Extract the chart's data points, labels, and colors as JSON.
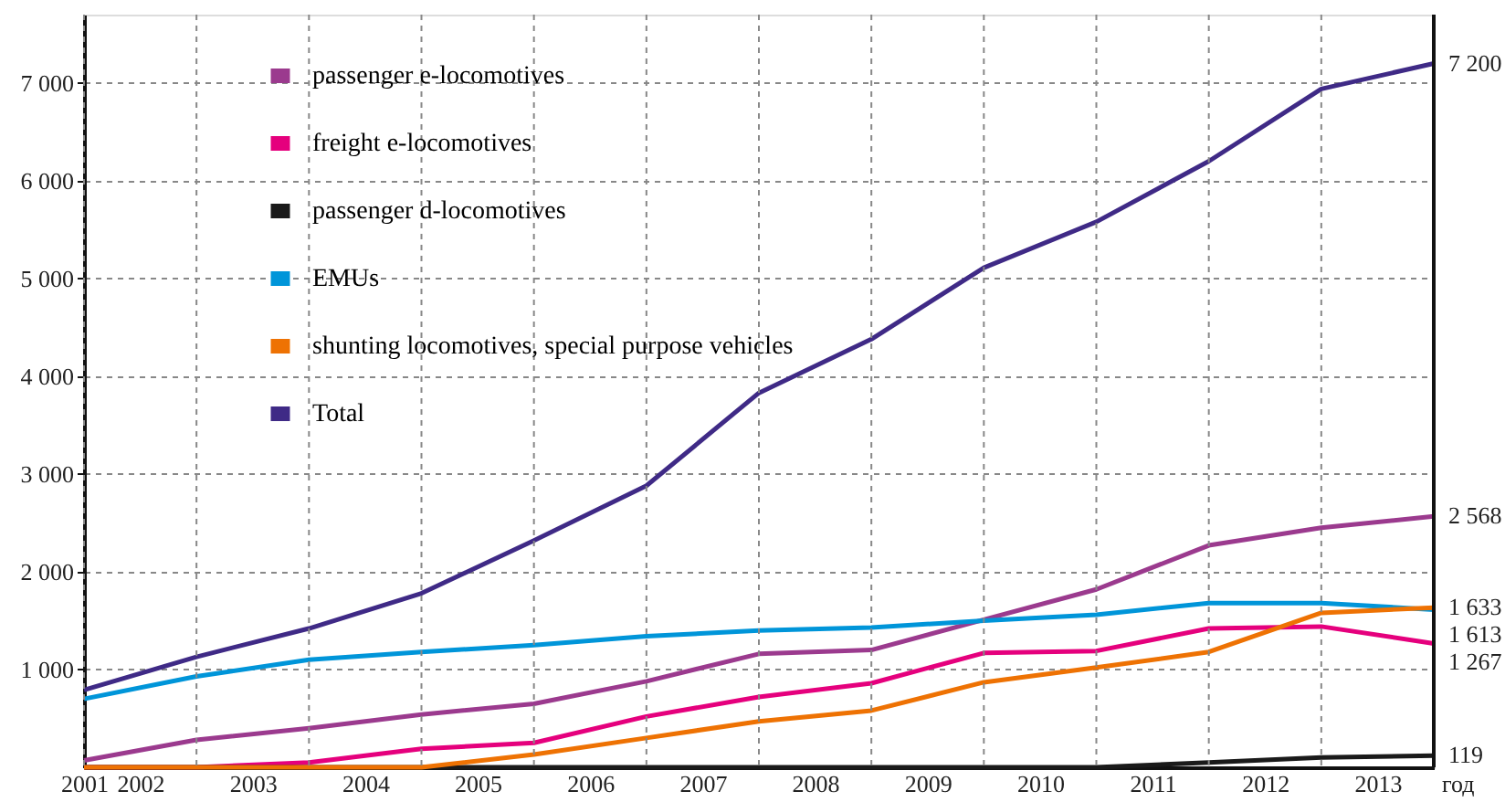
{
  "chart_data": {
    "type": "line",
    "x": [
      2001,
      2002,
      2003,
      2004,
      2005,
      2006,
      2007,
      2008,
      2009,
      2010,
      2011,
      2012,
      2013
    ],
    "xlabel": "год",
    "xlim": [
      2001,
      2013
    ],
    "xticks": [
      {
        "value": 2001,
        "label": "2001"
      },
      {
        "value": 2001.5,
        "label": "2002"
      },
      {
        "value": 2002.5,
        "label": "2003"
      },
      {
        "value": 2003.5,
        "label": "2004"
      },
      {
        "value": 2004.5,
        "label": "2005"
      },
      {
        "value": 2005.5,
        "label": "2006"
      },
      {
        "value": 2006.5,
        "label": "2007"
      },
      {
        "value": 2007.5,
        "label": "2008"
      },
      {
        "value": 2008.5,
        "label": "2009"
      },
      {
        "value": 2009.5,
        "label": "2010"
      },
      {
        "value": 2010.5,
        "label": "2011"
      },
      {
        "value": 2011.5,
        "label": "2012"
      },
      {
        "value": 2012.5,
        "label": "2013"
      }
    ],
    "ylim": [
      0,
      7700
    ],
    "yticks": [
      {
        "value": 1000,
        "label": "1 000"
      },
      {
        "value": 2000,
        "label": "2 000"
      },
      {
        "value": 3000,
        "label": "3 000"
      },
      {
        "value": 4000,
        "label": "4 000"
      },
      {
        "value": 5000,
        "label": "5 000"
      },
      {
        "value": 6000,
        "label": "6 000"
      },
      {
        "value": 7000,
        "label": "7 000"
      }
    ],
    "grid": true,
    "legend": "top left",
    "series": [
      {
        "name": "passenger e-locomotives",
        "color": "#9b3a8e",
        "values": [
          70,
          280,
          400,
          540,
          650,
          880,
          1160,
          1200,
          1510,
          1820,
          2270,
          2450,
          2568
        ],
        "value_labels": [
          null,
          null,
          null,
          null,
          null,
          null,
          null,
          null,
          null,
          null,
          null,
          null,
          "2 568"
        ]
      },
      {
        "name": "freight e-locomotives",
        "color": "#e5007d",
        "values": [
          0,
          0,
          50,
          190,
          250,
          520,
          720,
          860,
          1170,
          1190,
          1420,
          1440,
          1267
        ],
        "value_labels": [
          null,
          null,
          null,
          null,
          null,
          null,
          null,
          null,
          null,
          null,
          null,
          null,
          "1 267"
        ]
      },
      {
        "name": "passenger d-locomotives",
        "color": "#1a1a1a",
        "values": [
          0,
          0,
          0,
          0,
          0,
          0,
          0,
          0,
          0,
          0,
          50,
          100,
          119
        ],
        "value_labels": [
          null,
          null,
          null,
          null,
          null,
          null,
          null,
          null,
          null,
          null,
          null,
          null,
          "119"
        ]
      },
      {
        "name": "EMUs",
        "color": "#0095d9",
        "values": [
          700,
          930,
          1100,
          1180,
          1250,
          1340,
          1400,
          1430,
          1500,
          1560,
          1680,
          1680,
          1613
        ],
        "value_labels": [
          null,
          null,
          null,
          null,
          null,
          null,
          null,
          null,
          null,
          null,
          null,
          null,
          "1 613"
        ]
      },
      {
        "name": "shunting locomotives, special purpose vehicles",
        "color": "#ee7203",
        "values": [
          0,
          0,
          0,
          0,
          130,
          300,
          470,
          580,
          870,
          1020,
          1180,
          1580,
          1633
        ],
        "value_labels": [
          null,
          null,
          null,
          null,
          null,
          null,
          null,
          null,
          null,
          null,
          null,
          null,
          "1 633"
        ]
      },
      {
        "name": "Total",
        "color": "#3f2a86",
        "values": [
          790,
          1130,
          1420,
          1780,
          2320,
          2880,
          3830,
          4380,
          5110,
          5580,
          6200,
          6940,
          7200
        ],
        "value_labels": [
          null,
          null,
          null,
          null,
          null,
          null,
          null,
          null,
          null,
          null,
          null,
          null,
          "7 200"
        ]
      }
    ]
  }
}
